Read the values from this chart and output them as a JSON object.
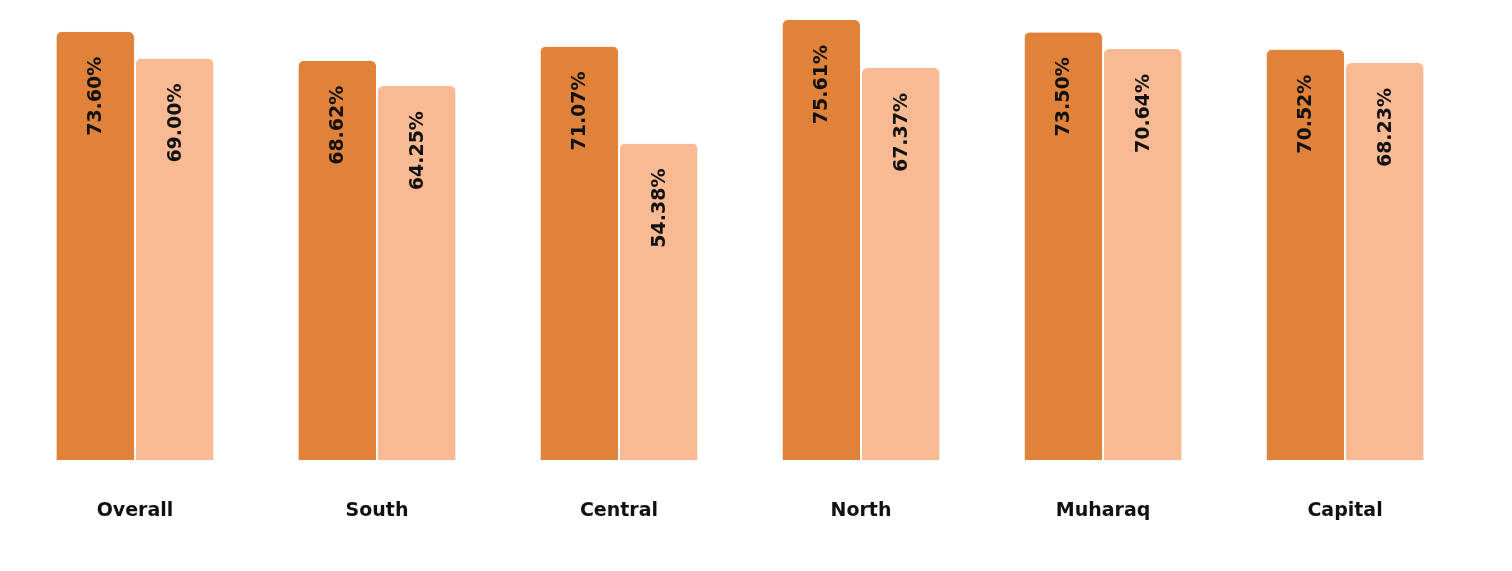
{
  "chart_data": {
    "type": "bar",
    "categories": [
      "Overall",
      "South",
      "Central",
      "North",
      "Muharaq",
      "Capital"
    ],
    "series": [
      {
        "color": "#e0823a",
        "values": [
          73.6,
          68.62,
          71.07,
          75.61,
          73.5,
          70.52
        ],
        "value_labels": [
          "73.60%",
          "68.62%",
          "71.07%",
          "75.61%",
          "73.50%",
          "70.52%"
        ]
      },
      {
        "color": "#f9b992",
        "values": [
          69.0,
          64.25,
          54.38,
          67.37,
          70.64,
          68.23
        ],
        "value_labels": [
          "69.00%",
          "64.25%",
          "54.38%",
          "67.37%",
          "70.64%",
          "68.23%"
        ]
      }
    ],
    "grid": false,
    "legend": false
  }
}
